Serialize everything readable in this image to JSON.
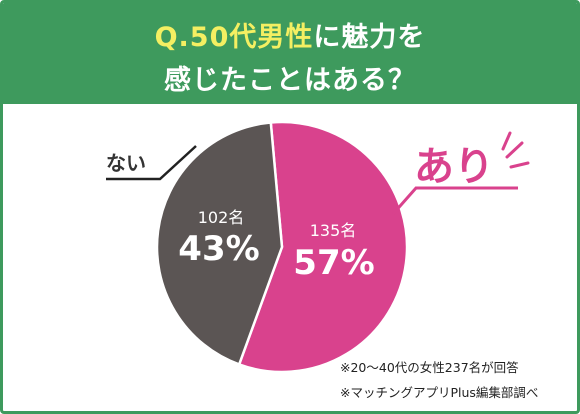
{
  "title": {
    "line1_highlight": "Q.50代男性",
    "line1_rest": "に魅力を",
    "line2": "感じたことはある？"
  },
  "colors": {
    "header_bg": "#3e9a5d",
    "highlight": "#f4ef62",
    "yes": "#d9428d",
    "no": "#5b5554"
  },
  "chart_data": {
    "type": "pie",
    "slices": [
      {
        "name": "あり",
        "count_label": "135名",
        "percent_label": "57%",
        "value": 57,
        "count": 135
      },
      {
        "name": "ない",
        "count_label": "102名",
        "percent_label": "43%",
        "value": 43,
        "count": 102
      }
    ]
  },
  "notes": [
    "※20～40代の女性237名が回答",
    "※マッチングアプリPlus編集部調べ"
  ]
}
